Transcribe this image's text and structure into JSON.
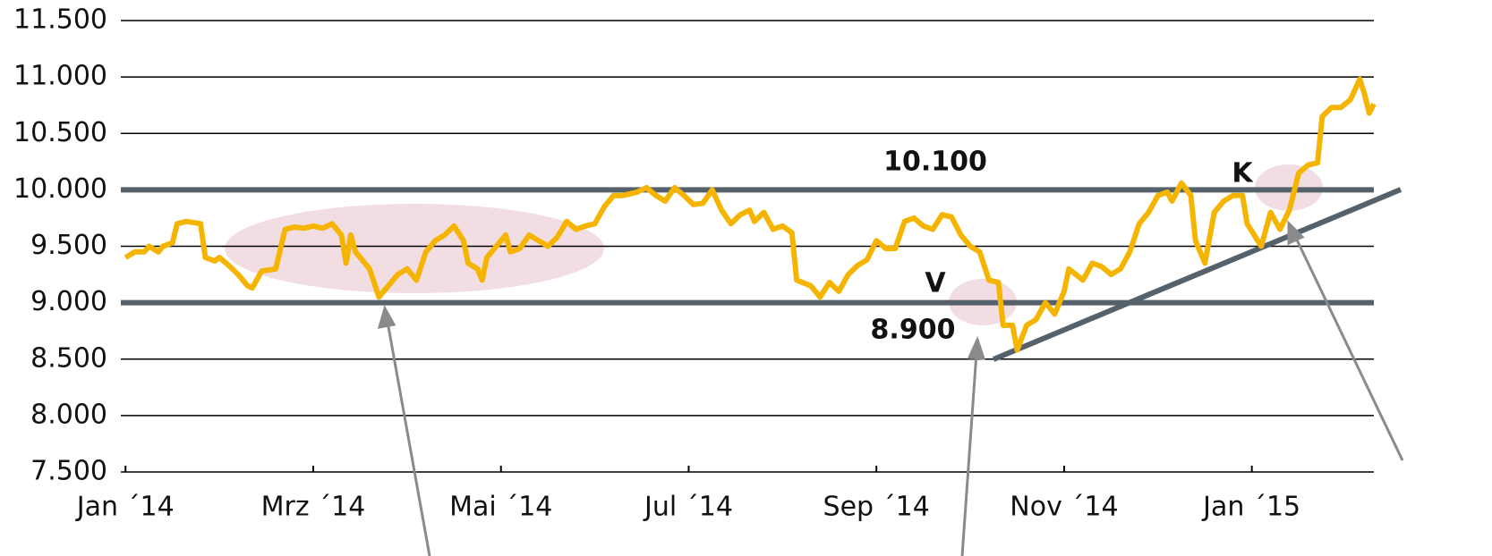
{
  "chart_data": {
    "type": "line",
    "x": [
      0,
      0.1,
      0.2,
      0.25,
      0.35,
      0.4,
      0.5,
      0.55,
      0.65,
      0.8,
      0.85,
      0.95,
      1,
      1.1,
      1.2,
      1.3,
      1.35,
      1.45,
      1.6,
      1.7,
      1.8,
      1.9,
      2,
      2.1,
      2.2,
      2.3,
      2.35,
      2.4,
      2.45,
      2.55,
      2.6,
      2.7,
      2.8,
      2.9,
      3,
      3.1,
      3.2,
      3.3,
      3.4,
      3.5,
      3.6,
      3.65,
      3.75,
      3.8,
      3.85,
      3.95,
      4.05,
      4.1,
      4.2,
      4.3,
      4.4,
      4.5,
      4.6,
      4.7,
      4.8,
      4.9,
      5,
      5.1,
      5.2,
      5.3,
      5.45,
      5.55,
      5.65,
      5.75,
      5.85,
      5.95,
      6.05,
      6.15,
      6.25,
      6.35,
      6.45,
      6.55,
      6.65,
      6.7,
      6.8,
      6.9,
      7,
      7.1,
      7.15,
      7.3,
      7.4,
      7.5,
      7.6,
      7.7,
      7.8,
      7.9,
      8,
      8.1,
      8.2,
      8.3,
      8.4,
      8.5,
      8.6,
      8.7,
      8.8,
      8.9,
      9,
      9.1,
      9.2,
      9.3,
      9.35,
      9.45,
      9.5,
      9.6,
      9.7,
      9.8,
      9.9,
      10,
      10.05,
      10.2,
      10.3,
      10.4,
      10.5,
      10.6,
      10.7,
      10.8,
      10.9,
      11,
      11.1,
      11.15,
      11.25,
      11.35,
      11.4,
      11.5,
      11.6,
      11.7,
      11.8,
      11.9,
      11.95,
      12.1,
      12.2,
      12.3,
      12.4,
      12.5,
      12.6,
      12.7,
      12.75,
      12.85,
      12.95,
      13.05,
      13.15,
      13.2,
      13.25,
      13.3
    ],
    "series": [
      {
        "color": "#f5b400",
        "values": [
          9400,
          9450,
          9450,
          9500,
          9450,
          9500,
          9530,
          9700,
          9720,
          9700,
          9400,
          9370,
          9400,
          9330,
          9250,
          9150,
          9130,
          9280,
          9300,
          9650,
          9670,
          9660,
          9680,
          9660,
          9700,
          9600,
          9350,
          9600,
          9450,
          9350,
          9300,
          9050,
          9150,
          9250,
          9300,
          9200,
          9450,
          9550,
          9600,
          9680,
          9550,
          9350,
          9300,
          9200,
          9400,
          9500,
          9600,
          9450,
          9480,
          9600,
          9550,
          9500,
          9580,
          9720,
          9650,
          9680,
          9700,
          9850,
          9950,
          9950,
          9980,
          10020,
          9950,
          9900,
          10020,
          9950,
          9870,
          9880,
          10000,
          9820,
          9700,
          9780,
          9820,
          9720,
          9800,
          9650,
          9680,
          9620,
          9200,
          9150,
          9050,
          9180,
          9100,
          9250,
          9330,
          9380,
          9550,
          9480,
          9480,
          9720,
          9750,
          9680,
          9650,
          9780,
          9760,
          9600,
          9500,
          9450,
          9200,
          9180,
          8800,
          8800,
          8580,
          8800,
          8850,
          9000,
          8900,
          9100,
          9300,
          9200,
          9350,
          9320,
          9250,
          9300,
          9450,
          9700,
          9800,
          9950,
          9980,
          9900,
          10060,
          9950,
          9550,
          9350,
          9800,
          9900,
          9950,
          9950,
          9700,
          9500,
          9800,
          9650,
          9820,
          10150,
          10220,
          10240,
          10650,
          10730,
          10730,
          10800,
          10980,
          10850,
          10680,
          10760
        ]
      }
    ],
    "levels": [
      10000,
      9000
    ],
    "annotations": [
      "10.100",
      "V",
      "8.900",
      "K"
    ],
    "xlim": [
      -0.05,
      13.3
    ],
    "xticks": [
      {
        "value": 0,
        "label": "Jan ´14"
      },
      {
        "value": 2,
        "label": "Mrz ´14"
      },
      {
        "value": 4,
        "label": "Mai ´14"
      },
      {
        "value": 6,
        "label": "Jul ´14"
      },
      {
        "value": 8,
        "label": "Sep ´14"
      },
      {
        "value": 10,
        "label": "Nov ´14"
      },
      {
        "value": 12,
        "label": "Jan ´15"
      }
    ],
    "ylim": [
      7500,
      11500
    ],
    "yticks": [
      {
        "value": 7500,
        "label": "7.500"
      },
      {
        "value": 8000,
        "label": "8.000"
      },
      {
        "value": 8500,
        "label": "8.500"
      },
      {
        "value": 9000,
        "label": "9.000"
      },
      {
        "value": 9500,
        "label": "9.500"
      },
      {
        "value": 10000,
        "label": "10.000"
      },
      {
        "value": 10500,
        "label": "10.500"
      },
      {
        "value": 11000,
        "label": "11.000"
      },
      {
        "value": 11500,
        "label": "11.500"
      }
    ],
    "grid": true
  }
}
